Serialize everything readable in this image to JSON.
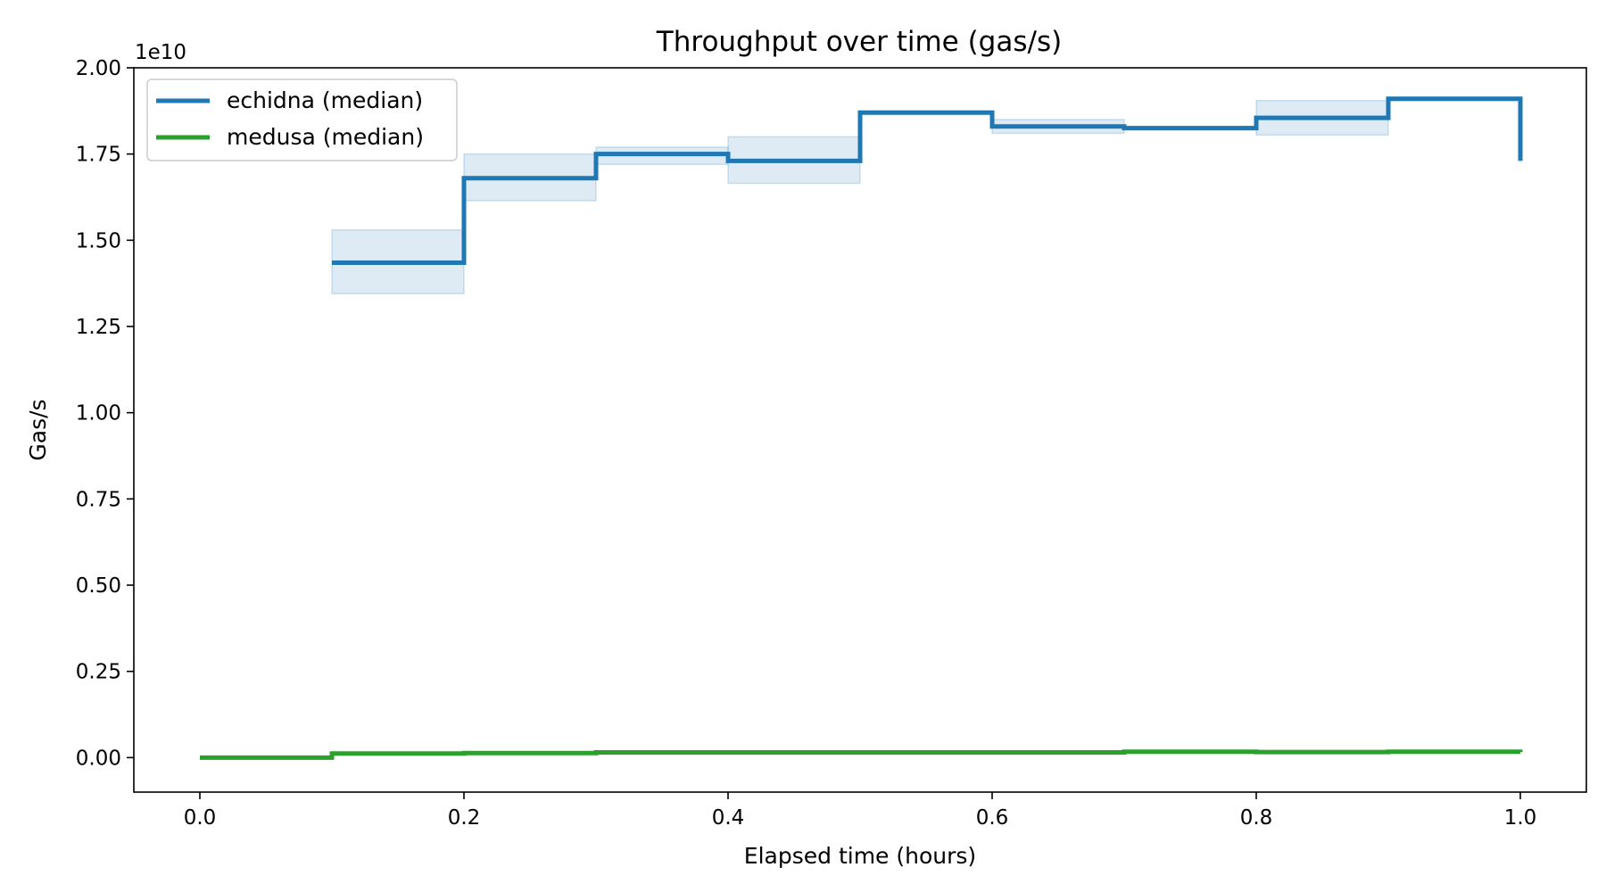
{
  "chart_data": {
    "type": "line",
    "step": true,
    "title": "Throughput over time (gas/s)",
    "xlabel": "Elapsed time (hours)",
    "ylabel": "Gas/s",
    "y_offset_text": "1e10",
    "xlim": [
      -0.05,
      1.05
    ],
    "ylim": [
      -0.1,
      2.0
    ],
    "xticks": [
      0.0,
      0.2,
      0.4,
      0.6,
      0.8,
      1.0
    ],
    "xtick_labels": [
      "0.0",
      "0.2",
      "0.4",
      "0.6",
      "0.8",
      "1.0"
    ],
    "yticks": [
      0.0,
      0.25,
      0.5,
      0.75,
      1.0,
      1.25,
      1.5,
      1.75,
      2.0
    ],
    "ytick_labels": [
      "0.00",
      "0.25",
      "0.50",
      "0.75",
      "1.00",
      "1.25",
      "1.50",
      "1.75",
      "2.00"
    ],
    "grid": false,
    "legend_position": "top-left",
    "series": [
      {
        "name": "echidna (median)",
        "color": "#1f77b4",
        "band_color": "#1f77b4",
        "x": [
          0.1,
          0.2,
          0.3,
          0.4,
          0.5,
          0.6,
          0.7,
          0.8,
          0.9,
          1.0
        ],
        "y": [
          1.435,
          1.68,
          1.75,
          1.73,
          1.87,
          1.83,
          1.825,
          1.855,
          1.91,
          1.73
        ],
        "band_low": [
          1.345,
          1.615,
          1.72,
          1.665,
          1.87,
          1.81,
          1.82,
          1.805,
          1.905,
          1.71
        ],
        "band_high": [
          1.53,
          1.75,
          1.77,
          1.8,
          1.875,
          1.85,
          1.83,
          1.905,
          1.915,
          1.75
        ]
      },
      {
        "name": "medusa (median)",
        "color": "#2ca02c",
        "x": [
          0.0,
          0.1,
          0.2,
          0.3,
          0.4,
          0.5,
          0.6,
          0.7,
          0.8,
          0.9,
          1.0
        ],
        "y": [
          0.0,
          0.012,
          0.013,
          0.015,
          0.015,
          0.015,
          0.015,
          0.017,
          0.016,
          0.017,
          0.016
        ]
      }
    ]
  }
}
